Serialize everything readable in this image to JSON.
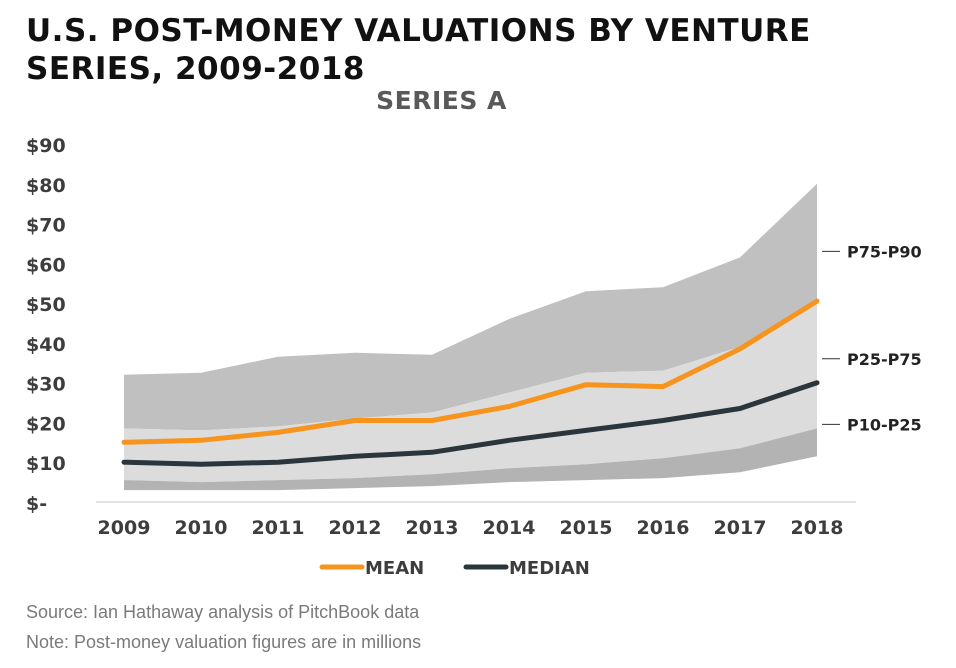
{
  "header": {
    "title": "U.S. POST-MONEY VALUATIONS BY VENTURE SERIES, 2009-2018",
    "subtitle": "SERIES A"
  },
  "footer": {
    "source": "Source: Ian Hathaway analysis of PitchBook data",
    "note": "Note: Post-money valuation figures are in millions"
  },
  "chart_data": {
    "type": "area",
    "title": "SERIES A",
    "x": [
      "2009",
      "2010",
      "2011",
      "2012",
      "2013",
      "2014",
      "2015",
      "2016",
      "2017",
      "2018"
    ],
    "ylim": [
      0,
      90
    ],
    "yticks": [
      0,
      10,
      20,
      30,
      40,
      50,
      60,
      70,
      80,
      90
    ],
    "ytick_labels": [
      "$-",
      "$10",
      "$20",
      "$30",
      "$40",
      "$50",
      "$60",
      "$70",
      "$80",
      "$90"
    ],
    "grid": false,
    "bands": [
      {
        "name": "P75-P90",
        "color": "#c0c0c0",
        "lower": [
          18.5,
          18,
          19,
          21,
          22.5,
          27.5,
          32.5,
          33,
          39,
          50.5
        ],
        "upper": [
          32,
          32.5,
          36.5,
          37.5,
          37,
          46,
          53,
          54,
          61.5,
          80
        ]
      },
      {
        "name": "P25-P75",
        "color": "#dcdcdc",
        "lower": [
          5.5,
          5,
          5.5,
          6,
          7,
          8.5,
          9.5,
          11,
          13.5,
          18.5
        ],
        "upper": [
          18.5,
          18,
          19,
          21,
          22.5,
          27.5,
          32.5,
          33,
          39,
          50.5
        ]
      },
      {
        "name": "P10-P25",
        "color": "#b3b3b3",
        "lower": [
          3,
          3,
          3,
          3.5,
          4,
          5,
          5.5,
          6,
          7.5,
          11.5
        ],
        "upper": [
          5.5,
          5,
          5.5,
          6,
          7,
          8.5,
          9.5,
          11,
          13.5,
          18.5
        ]
      }
    ],
    "band_labels": [
      {
        "text": "P75-P90",
        "y": 63
      },
      {
        "text": "P25-P75",
        "y": 36
      },
      {
        "text": "P10-P25",
        "y": 19.5
      }
    ],
    "series": [
      {
        "name": "MEAN",
        "color": "#f7941d",
        "values": [
          15,
          15.5,
          17.5,
          20.5,
          20.5,
          24,
          29.5,
          29,
          38.5,
          50.5
        ]
      },
      {
        "name": "MEDIAN",
        "color": "#2b353c",
        "values": [
          10,
          9.5,
          10,
          11.5,
          12.5,
          15.5,
          18,
          20.5,
          23.5,
          30
        ]
      }
    ],
    "legend": "bottom-center",
    "axis_color": "#d9d9d9"
  }
}
